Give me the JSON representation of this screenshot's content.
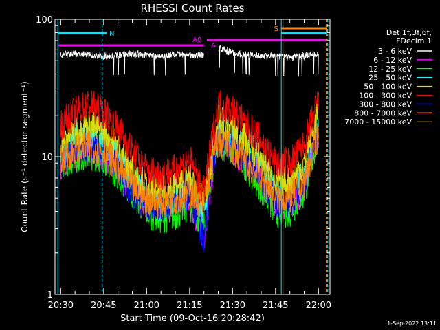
{
  "title": "RHESSI Count Rates",
  "footer_timestamp": "1-Sep-2022 13:11",
  "legend_header": [
    "Det 1f,3f,6f,",
    "FDecim 1"
  ],
  "flags": [
    {
      "label": "N",
      "color": "#00e5ff"
    },
    {
      "label": "A0",
      "color": "#ff00ff"
    },
    {
      "label": "A",
      "color": "#ff00ff"
    },
    {
      "label": "S",
      "color": "#ff8c00"
    }
  ],
  "chart_data": {
    "type": "line",
    "title": "RHESSI Count Rates",
    "xlabel": "Start Time (09-Oct-16 20:28:42)",
    "ylabel": "Count Rate (s⁻¹ detector segment⁻¹)",
    "y_scale": "log",
    "ylim": [
      1,
      100
    ],
    "xlim": [
      "20:28",
      "22:04"
    ],
    "x_ticks": [
      "20:30",
      "20:45",
      "21:00",
      "21:15",
      "21:30",
      "21:45",
      "22:00"
    ],
    "y_ticks": [
      "1",
      "10",
      "100"
    ],
    "grid": false,
    "legend_position": "right",
    "x": [
      "20:30",
      "20:35",
      "20:40",
      "20:45",
      "20:50",
      "20:55",
      "21:00",
      "21:05",
      "21:10",
      "21:15",
      "21:20",
      "21:23",
      "21:25",
      "21:30",
      "21:35",
      "21:40",
      "21:45",
      "21:50",
      "21:55",
      "22:00"
    ],
    "series": [
      {
        "name": "3 - 6 keV",
        "color": "#ffffff",
        "values": [
          55,
          56,
          55,
          54,
          55,
          56,
          55,
          54,
          55,
          55,
          55,
          null,
          62,
          57,
          55,
          54,
          54,
          53,
          54,
          56
        ]
      },
      {
        "name": "6 - 12 keV",
        "color": "#ff00ff",
        "values": [
          9,
          10.5,
          11.5,
          10.5,
          8,
          6,
          4.5,
          4.2,
          4.5,
          5,
          2.6,
          8,
          13,
          11,
          9,
          6.5,
          4.5,
          4.5,
          6,
          15
        ]
      },
      {
        "name": "12 - 25 keV",
        "color": "#00ff00",
        "values": [
          9,
          10,
          10.5,
          10,
          7.5,
          5.5,
          4,
          3.6,
          3.8,
          4.5,
          3,
          8,
          13,
          11,
          8.5,
          6,
          4,
          4,
          5.5,
          15
        ]
      },
      {
        "name": "25 - 50 keV",
        "color": "#00ffff",
        "values": [
          11,
          13,
          14,
          13,
          10,
          7,
          5,
          4.5,
          5,
          6,
          4,
          9,
          15,
          14,
          11,
          8,
          5.5,
          5.5,
          7.5,
          18
        ]
      },
      {
        "name": "50 - 100 keV",
        "color": "#dddd00",
        "values": [
          13,
          15.5,
          17,
          15,
          12,
          8,
          6,
          5.5,
          6,
          7,
          4.5,
          11,
          18,
          16,
          13,
          9.5,
          6.5,
          6.5,
          9,
          22
        ]
      },
      {
        "name": "100 - 300 keV",
        "color": "#ff0000",
        "values": [
          17,
          21,
          24,
          21,
          16,
          11,
          8,
          7.5,
          8,
          9.5,
          5.5,
          14,
          24,
          22,
          17,
          13,
          9,
          9,
          12,
          26
        ]
      },
      {
        "name": "300 - 800 keV",
        "color": "#0000ff",
        "values": [
          9,
          11,
          12,
          11,
          8,
          5.5,
          4.5,
          4.5,
          4.8,
          5.5,
          2.5,
          9,
          14,
          12,
          9.5,
          7,
          4.8,
          4.8,
          6.5,
          17
        ]
      },
      {
        "name": "800 - 7000 keV",
        "color": "#ff8000",
        "values": [
          9.5,
          11,
          12,
          11,
          8.5,
          6,
          5,
          4.6,
          5,
          5.5,
          4.5,
          9,
          13,
          11.5,
          9,
          7,
          5,
          5,
          6.5,
          15
        ]
      },
      {
        "name": "7000 - 15000 keV",
        "color": "#8b6914",
        "values": [
          null,
          null,
          null,
          null,
          null,
          null,
          null,
          null,
          null,
          null,
          null,
          null,
          null,
          null,
          null,
          null,
          null,
          null,
          null,
          null
        ]
      }
    ]
  }
}
